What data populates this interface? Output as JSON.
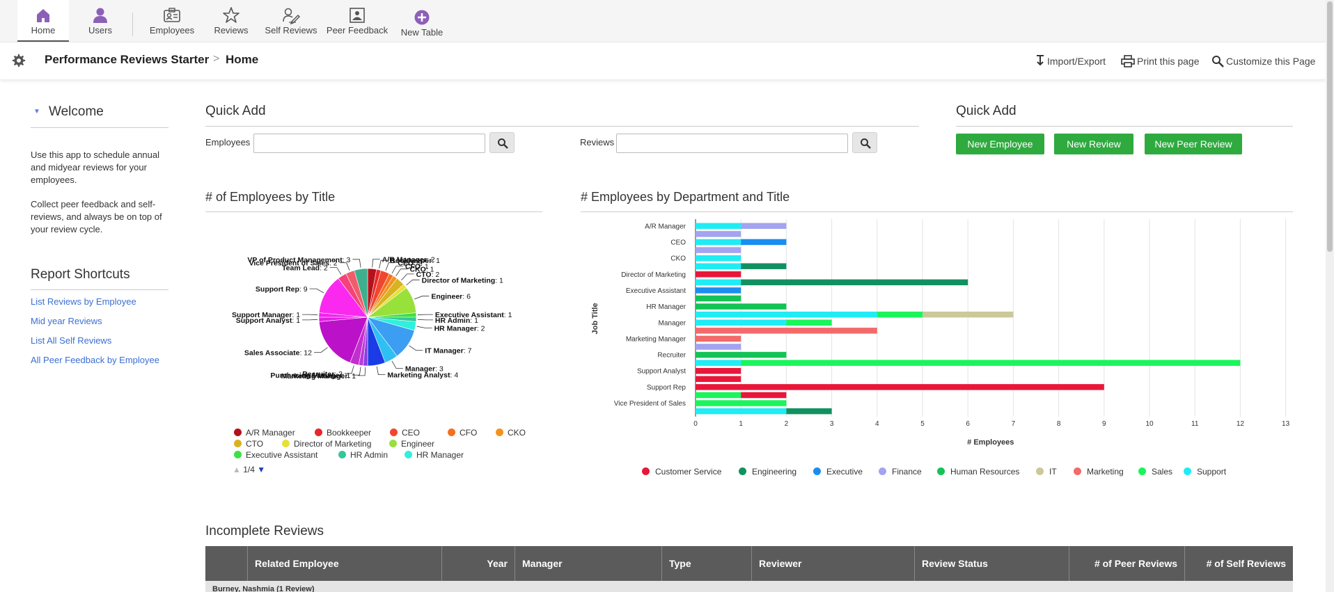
{
  "nav": {
    "items": [
      {
        "label": "Home"
      },
      {
        "label": "Users"
      },
      {
        "label": "Employees"
      },
      {
        "label": "Reviews"
      },
      {
        "label": "Self Reviews"
      },
      {
        "label": "Peer Feedback"
      },
      {
        "label": "New Table"
      }
    ]
  },
  "header": {
    "app_name": "Performance Reviews Starter",
    "separator": ">",
    "page": "Home",
    "actions": {
      "import_export": "Import/Export",
      "print": "Print this page",
      "customize": "Customize this Page"
    }
  },
  "sidebar": {
    "welcome_title": "Welcome",
    "para1": "Use this app to schedule annual and midyear reviews for your employees.",
    "para2": "Collect peer feedback and self-reviews, and always be on top of your review cycle.",
    "report_title": "Report Shortcuts",
    "links": [
      "List Reviews by Employee",
      "Mid year Reviews",
      "List All Self Reviews",
      "All Peer Feedback by Employee"
    ]
  },
  "quick_add": {
    "title1": "Quick Add",
    "employees_label": "Employees",
    "employees_value": "",
    "reviews_label": "Reviews",
    "reviews_value": "",
    "title2": "Quick Add",
    "buttons": [
      "New Employee",
      "New Review",
      "New Peer Review"
    ]
  },
  "colors": {
    "green_button": "#2eaa3f",
    "nav_icon": "#8c5fb8",
    "table_header": "#5b5b5b",
    "link": "#3b6fd0"
  },
  "chart_data": [
    {
      "type": "pie",
      "title": "# of Employees by Title",
      "slices": [
        {
          "label": "A/R Manager",
          "value": 2,
          "color": "#b3121a"
        },
        {
          "label": "Bookkeeper",
          "value": 1,
          "color": "#e8262b"
        },
        {
          "label": "CEO",
          "value": 2,
          "color": "#f0462d"
        },
        {
          "label": "CFO",
          "value": 1,
          "color": "#f4701f"
        },
        {
          "label": "CKO",
          "value": 1,
          "color": "#f4911e"
        },
        {
          "label": "CTO",
          "value": 2,
          "color": "#d8b320"
        },
        {
          "label": "Director of Marketing",
          "value": 1,
          "color": "#e7e03a"
        },
        {
          "label": "Engineer",
          "value": 6,
          "color": "#98e03a"
        },
        {
          "label": "Executive Assistant",
          "value": 1,
          "color": "#3ee047"
        },
        {
          "label": "HR Admin",
          "value": 1,
          "color": "#33c79a"
        },
        {
          "label": "HR Manager",
          "value": 2,
          "color": "#2ff0dc"
        },
        {
          "label": "IT Manager",
          "value": 7,
          "color": "#3b9ef2"
        },
        {
          "label": "Manager",
          "value": 3,
          "color": "#2ec0f2"
        },
        {
          "label": "Marketing Analyst",
          "value": 4,
          "color": "#1a3be6"
        },
        {
          "label": "Marketing Manager",
          "value": 1,
          "color": "#8a3be6"
        },
        {
          "label": "Purchasing Manager",
          "value": 1,
          "color": "#b93bd6"
        },
        {
          "label": "Recruiter",
          "value": 2,
          "color": "#c22fcf"
        },
        {
          "label": "Sales Associate",
          "value": 12,
          "color": "#bb11c8"
        },
        {
          "label": "Support Analyst",
          "value": 1,
          "color": "#e21ee2"
        },
        {
          "label": "Support Manager",
          "value": 1,
          "color": "#f024ee"
        },
        {
          "label": "Support Rep",
          "value": 9,
          "color": "#fb28f0"
        },
        {
          "label": "Team Lead",
          "value": 2,
          "color": "#f4427a"
        },
        {
          "label": "Vice President of Sales",
          "value": 2,
          "color": "#f25c6a"
        },
        {
          "label": "VP of Product Management",
          "value": 3,
          "color": "#3fae8e"
        }
      ],
      "legend_shown": [
        "A/R Manager",
        "Bookkeeper",
        "CEO",
        "CFO",
        "CKO",
        "CTO",
        "Director of Marketing",
        "Engineer",
        "Executive Assistant",
        "HR Admin",
        "HR Manager"
      ],
      "legend_page": "1/4"
    },
    {
      "type": "bar",
      "orientation": "horizontal",
      "title": "# Employees by Department and Title",
      "xlabel": "# Employees",
      "ylabel": "Job Title",
      "xlim": [
        0,
        13
      ],
      "xticks": [
        0,
        1,
        2,
        3,
        4,
        5,
        6,
        7,
        8,
        9,
        10,
        11,
        12,
        13
      ],
      "grid": true,
      "legend_position": "bottom",
      "series_colors": {
        "Customer Service": "#e8173a",
        "Engineering": "#129160",
        "Executive": "#1a8ef0",
        "Finance": "#a3a3f0",
        "Human Resources": "#13c356",
        "IT": "#cbc89a",
        "Marketing": "#f36a6a",
        "Sales": "#19f55a",
        "Support": "#1fecf4"
      },
      "categories": [
        "A/R Manager",
        "",
        "CEO",
        "",
        "CKO",
        "",
        "Director of Marketing",
        "",
        "Executive Assistant",
        "",
        "HR Manager",
        "",
        "Manager",
        "",
        "Marketing Manager",
        "",
        "Recruiter",
        "",
        "Support Analyst",
        "",
        "Support Rep",
        "",
        "Vice President of Sales",
        ""
      ],
      "rows": [
        [
          [
            "Support",
            1
          ],
          [
            "Finance",
            1
          ]
        ],
        [
          [
            "Finance",
            1
          ]
        ],
        [
          [
            "Support",
            1
          ],
          [
            "Executive",
            1
          ]
        ],
        [
          [
            "Finance",
            1
          ]
        ],
        [
          [
            "Support",
            1
          ]
        ],
        [
          [
            "Support",
            1
          ],
          [
            "Engineering",
            1
          ]
        ],
        [
          [
            "Customer Service",
            1
          ]
        ],
        [
          [
            "Support",
            1
          ],
          [
            "Engineering",
            5
          ]
        ],
        [
          [
            "Executive",
            1
          ]
        ],
        [
          [
            "Human Resources",
            1
          ]
        ],
        [
          [
            "Human Resources",
            2
          ]
        ],
        [
          [
            "Support",
            4
          ],
          [
            "Sales",
            1
          ],
          [
            "IT",
            2
          ]
        ],
        [
          [
            "Support",
            2
          ],
          [
            "Sales",
            1
          ]
        ],
        [
          [
            "Marketing",
            4
          ]
        ],
        [
          [
            "Marketing",
            1
          ]
        ],
        [
          [
            "Finance",
            1
          ]
        ],
        [
          [
            "Human Resources",
            2
          ]
        ],
        [
          [
            "Support",
            1
          ],
          [
            "Sales",
            11
          ]
        ],
        [
          [
            "Customer Service",
            1
          ]
        ],
        [
          [
            "Customer Service",
            1
          ]
        ],
        [
          [
            "Customer Service",
            9
          ]
        ],
        [
          [
            "Sales",
            1
          ],
          [
            "Customer Service",
            1
          ]
        ],
        [
          [
            "Sales",
            2
          ]
        ],
        [
          [
            "Support",
            2
          ],
          [
            "Engineering",
            1
          ]
        ]
      ]
    }
  ],
  "table": {
    "title": "Incomplete Reviews",
    "columns": [
      "Related Employee",
      "Year",
      "Manager",
      "Type",
      "Reviewer",
      "Review Status",
      "# of Peer Reviews",
      "# of Self Reviews"
    ],
    "group_row": "Burney, Nashmia (1 Review)"
  }
}
